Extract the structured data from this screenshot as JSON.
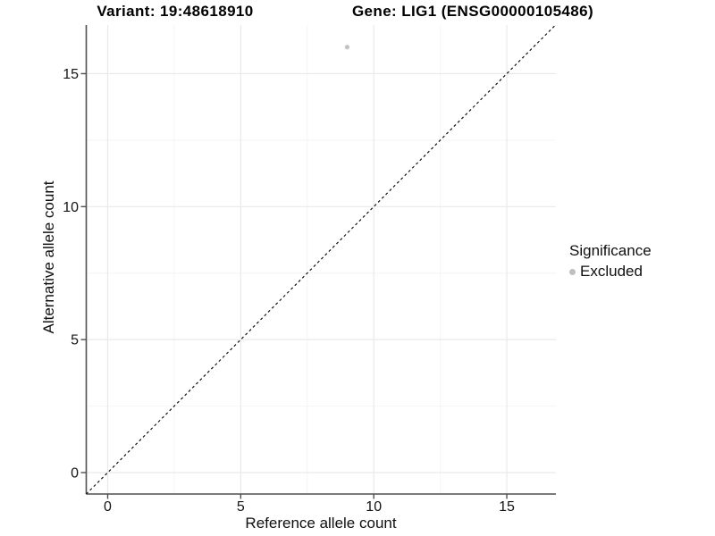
{
  "header": {
    "variant_title": "Variant: 19:48618910",
    "gene_title": "Gene: LIG1 (ENSG00000105486)"
  },
  "chart_data": {
    "type": "scatter",
    "xlabel": "Reference allele count",
    "ylabel": "Alternative allele count",
    "xlim": [
      -0.82,
      16.85
    ],
    "ylim": [
      -0.81,
      16.83
    ],
    "x_ticks": [
      0,
      5,
      10,
      15
    ],
    "y_ticks": [
      0,
      5,
      10,
      15
    ],
    "x_minor_ticks": [
      2.5,
      7.5,
      12.5
    ],
    "y_minor_ticks": [
      2.5,
      7.5,
      12.5
    ],
    "grid": "on",
    "points": [
      {
        "x": 9,
        "y": 16,
        "series": "Excluded"
      }
    ],
    "reference_line": {
      "type": "identity",
      "style": "dashed",
      "from": -0.81,
      "to": 16.83
    },
    "legend": {
      "position": "right",
      "title": "Significance",
      "entries": [
        {
          "label": "Excluded",
          "color": "#bfbfbf",
          "marker": "circle"
        }
      ]
    },
    "colors": {
      "point": "#c2c2c2",
      "grid_major": "#e9e9e9",
      "grid_minor": "#f4f4f4",
      "axis_line": "#4f4f4f",
      "tick_text": "#141414",
      "dashed_line": "#111111"
    }
  }
}
